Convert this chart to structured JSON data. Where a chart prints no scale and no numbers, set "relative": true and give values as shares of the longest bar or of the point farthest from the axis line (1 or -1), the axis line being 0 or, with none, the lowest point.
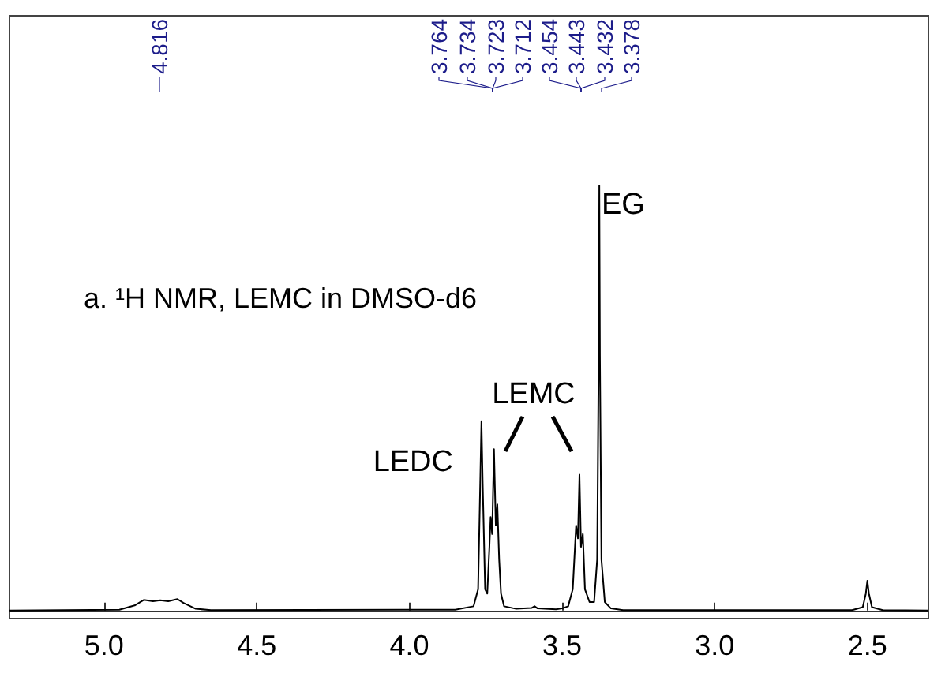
{
  "chart_data": {
    "type": "line",
    "title": "a. ¹H NMR, LEMC in DMSO-d6",
    "relative": true,
    "xlim": [
      5.31,
      2.3
    ],
    "xticks": [
      {
        "value": 5,
        "label": "5.0"
      },
      4.5,
      {
        "value": 4,
        "label": "4.0"
      },
      3.5,
      {
        "value": 3,
        "label": "3.0"
      },
      2.5
    ],
    "grid": false,
    "marker": "none",
    "line_style": "solid",
    "x": [
      5.31,
      4.95,
      4.9,
      4.87,
      4.84,
      4.816,
      4.79,
      4.76,
      4.74,
      4.7,
      4.65,
      3.85,
      3.79,
      3.775,
      3.768,
      3.764,
      3.76,
      3.752,
      3.745,
      3.738,
      3.734,
      3.729,
      3.723,
      3.717,
      3.712,
      3.706,
      3.7,
      3.69,
      3.65,
      3.6,
      3.59,
      3.58,
      3.52,
      3.5,
      3.48,
      3.465,
      3.454,
      3.448,
      3.443,
      3.438,
      3.432,
      3.425,
      3.41,
      3.395,
      3.385,
      3.38,
      3.378,
      3.376,
      3.371,
      3.36,
      3.34,
      3.3,
      2.55,
      2.515,
      2.505,
      2.5,
      2.495,
      2.485,
      2.45,
      2.3
    ],
    "series": [
      {
        "color": "#000000",
        "values": [
          0,
          0.002,
          0.012,
          0.025,
          0.022,
          0.024,
          0.022,
          0.027,
          0.018,
          0.004,
          0.001,
          0.002,
          0.01,
          0.05,
          0.3,
          0.446,
          0.3,
          0.05,
          0.04,
          0.15,
          0.22,
          0.18,
          0.38,
          0.2,
          0.25,
          0.12,
          0.04,
          0.01,
          0.004,
          0.006,
          0.01,
          0.005,
          0.003,
          0.005,
          0.01,
          0.05,
          0.2,
          0.17,
          0.32,
          0.15,
          0.18,
          0.05,
          0.02,
          0.02,
          0.12,
          0.6,
          1.0,
          0.6,
          0.12,
          0.02,
          0.005,
          0.001,
          0.001,
          0.008,
          0.04,
          0.07,
          0.04,
          0.008,
          0.001,
          0
        ]
      }
    ],
    "annotations": [
      "4.816",
      "3.764",
      "3.734",
      "3.723",
      "3.712",
      "3.454",
      "3.443",
      "3.432",
      "3.378",
      "LEDC",
      "LEMC",
      "EG"
    ]
  }
}
